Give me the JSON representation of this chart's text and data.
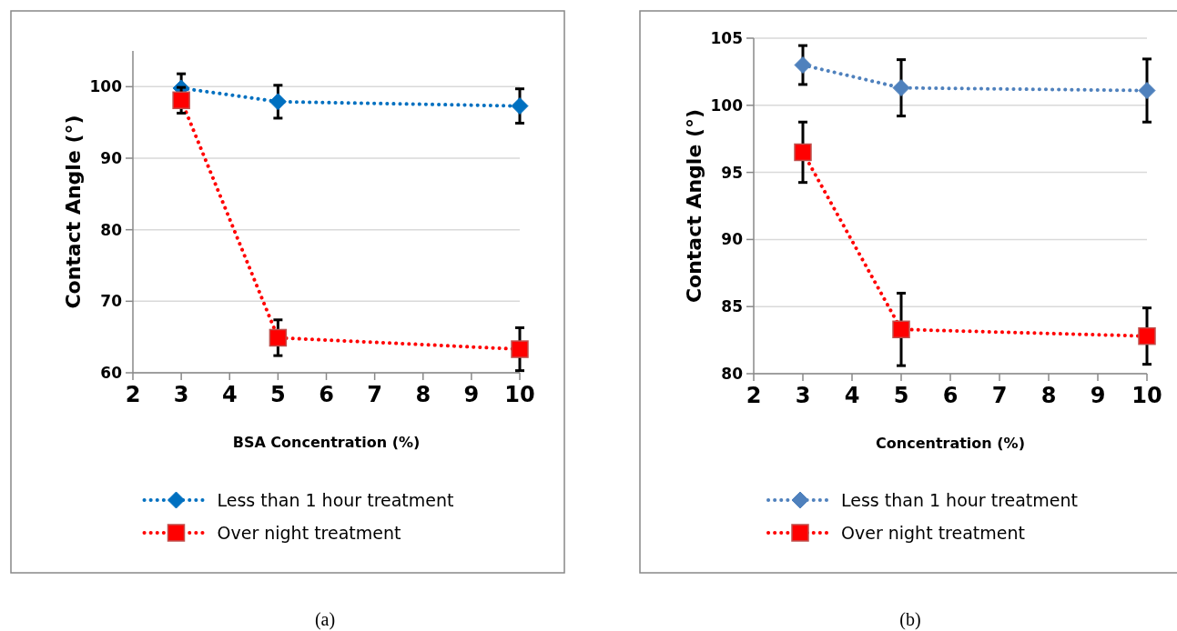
{
  "chart_data": [
    {
      "type": "line",
      "xlabel": "BSA Concentration (%)",
      "ylabel": "Contact Angle (°)",
      "x": [
        3,
        5,
        10
      ],
      "xlim": [
        2,
        10
      ],
      "xticks": [
        2,
        3,
        4,
        5,
        6,
        7,
        8,
        9,
        10
      ],
      "ylim": [
        60,
        105
      ],
      "yticks": [
        60,
        70,
        80,
        90,
        100
      ],
      "grid": "y",
      "legend": "bottom",
      "line_style": "dotted",
      "annotations": [
        "(a)"
      ],
      "series": [
        {
          "name": "Less than 1 hour treatment",
          "color": "#0070c0",
          "marker": "diamond",
          "values": [
            99.8,
            97.9,
            97.3
          ],
          "errors": [
            2,
            2.3,
            2.4
          ]
        },
        {
          "name": "Over night treatment",
          "color": "#ff0000",
          "marker": "square",
          "values": [
            98.1,
            64.9,
            63.3
          ],
          "errors": [
            1.8,
            2.5,
            3
          ]
        }
      ]
    },
    {
      "type": "line",
      "xlabel": "Concentration (%)",
      "ylabel": "Contact Angle (°)",
      "x": [
        3,
        5,
        10
      ],
      "xlim": [
        2,
        10
      ],
      "xticks": [
        2,
        3,
        4,
        5,
        6,
        7,
        8,
        9,
        10
      ],
      "ylim": [
        80,
        105
      ],
      "yticks": [
        80,
        85,
        90,
        95,
        100,
        105
      ],
      "grid": "y",
      "legend": "bottom",
      "line_style": "dotted",
      "annotations": [
        "(b)"
      ],
      "series": [
        {
          "name": "Less than 1 hour treatment",
          "color": "#4f81bd",
          "marker": "diamond",
          "values": [
            103,
            101.3,
            101.1
          ],
          "errors": [
            1.45,
            2.1,
            2.35
          ]
        },
        {
          "name": "Over night treatment",
          "color": "#ff0000",
          "marker": "square",
          "values": [
            96.5,
            83.3,
            82.8
          ],
          "errors": [
            2.25,
            2.7,
            2.1
          ]
        }
      ]
    }
  ]
}
